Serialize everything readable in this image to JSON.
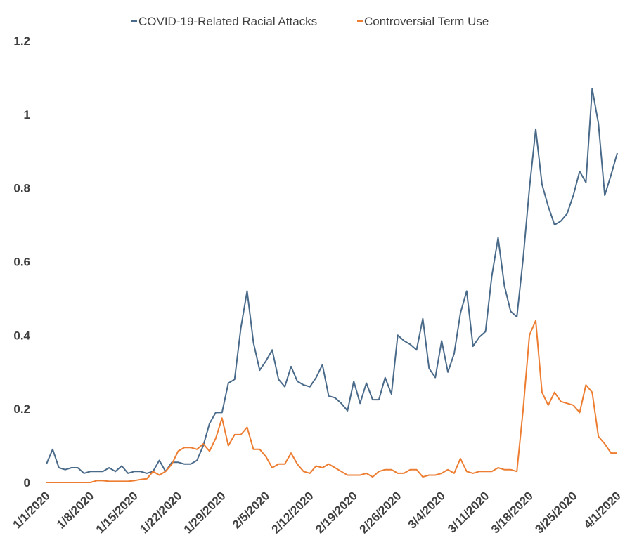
{
  "chart_data": {
    "type": "line",
    "title": "",
    "xlabel": "",
    "ylabel": "",
    "ylim": [
      0,
      1.2
    ],
    "y_ticks": [
      "0",
      "0.2",
      "0.4",
      "0.6",
      "0.8",
      "1",
      "1.2"
    ],
    "x_tick_labels": [
      "1/1/2020",
      "1/8/2020",
      "1/15/2020",
      "1/22/2020",
      "1/29/2020",
      "2/5/2020",
      "2/12/2020",
      "2/19/2020",
      "2/26/2020",
      "3/4/2020",
      "3/11/2020",
      "3/18/2020",
      "3/25/2020",
      "4/1/2020"
    ],
    "grid": false,
    "legend_position": "top",
    "series": [
      {
        "name": "COVID-19-Related Racial Attacks",
        "color": "#4a6a8a",
        "values": [
          0.05,
          0.09,
          0.04,
          0.035,
          0.04,
          0.04,
          0.025,
          0.03,
          0.03,
          0.03,
          0.04,
          0.03,
          0.045,
          0.025,
          0.03,
          0.03,
          0.025,
          0.03,
          0.06,
          0.03,
          0.055,
          0.055,
          0.05,
          0.05,
          0.06,
          0.1,
          0.16,
          0.19,
          0.19,
          0.27,
          0.28,
          0.42,
          0.52,
          0.38,
          0.305,
          0.33,
          0.36,
          0.28,
          0.26,
          0.315,
          0.275,
          0.265,
          0.26,
          0.285,
          0.32,
          0.235,
          0.23,
          0.215,
          0.195,
          0.275,
          0.215,
          0.27,
          0.225,
          0.225,
          0.285,
          0.24,
          0.4,
          0.385,
          0.375,
          0.36,
          0.445,
          0.31,
          0.285,
          0.385,
          0.3,
          0.35,
          0.46,
          0.52,
          0.37,
          0.395,
          0.41,
          0.56,
          0.665,
          0.535,
          0.465,
          0.45,
          0.61,
          0.8,
          0.96,
          0.81,
          0.75,
          0.7,
          0.71,
          0.73,
          0.78,
          0.845,
          0.815,
          1.07,
          0.975,
          0.78,
          0.835,
          0.895
        ]
      },
      {
        "name": "Controversial Term Use",
        "color": "#ed7d31",
        "values": [
          0.0,
          0.0,
          0.0,
          0.0,
          0.0,
          0.0,
          0.0,
          0.0,
          0.005,
          0.005,
          0.003,
          0.003,
          0.003,
          0.003,
          0.005,
          0.008,
          0.01,
          0.03,
          0.02,
          0.03,
          0.05,
          0.085,
          0.095,
          0.095,
          0.09,
          0.105,
          0.085,
          0.12,
          0.175,
          0.1,
          0.13,
          0.13,
          0.15,
          0.09,
          0.09,
          0.07,
          0.04,
          0.05,
          0.05,
          0.08,
          0.05,
          0.03,
          0.025,
          0.045,
          0.04,
          0.05,
          0.04,
          0.03,
          0.02,
          0.02,
          0.02,
          0.025,
          0.015,
          0.03,
          0.035,
          0.035,
          0.025,
          0.025,
          0.035,
          0.035,
          0.015,
          0.02,
          0.02,
          0.025,
          0.035,
          0.025,
          0.065,
          0.03,
          0.025,
          0.03,
          0.03,
          0.03,
          0.04,
          0.035,
          0.035,
          0.03,
          0.2,
          0.4,
          0.44,
          0.245,
          0.21,
          0.245,
          0.22,
          0.215,
          0.21,
          0.19,
          0.265,
          0.245,
          0.125,
          0.105,
          0.08,
          0.08
        ]
      }
    ]
  }
}
